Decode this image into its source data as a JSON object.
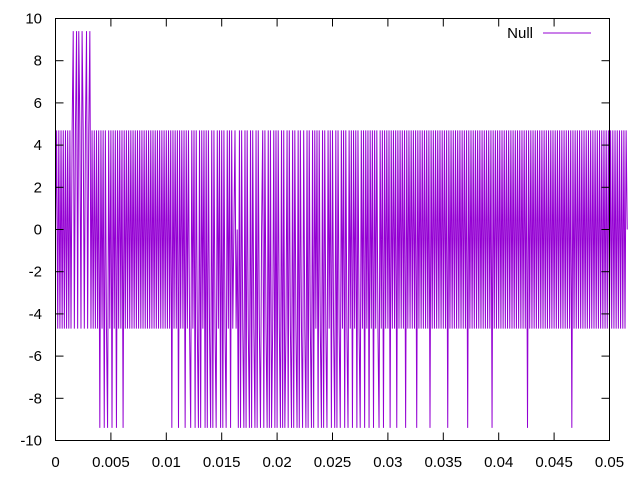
{
  "chart_data": {
    "type": "line",
    "title": "",
    "xlabel": "",
    "ylabel": "",
    "xlim": [
      0,
      0.05
    ],
    "ylim": [
      -10,
      10
    ],
    "x_ticks": [
      0,
      0.005,
      0.01,
      0.015,
      0.02,
      0.025,
      0.03,
      0.035,
      0.04,
      0.045,
      0.05
    ],
    "x_tick_labels": [
      "0",
      "0.005",
      "0.01",
      "0.015",
      "0.02",
      "0.025",
      "0.03",
      "0.035",
      "0.04",
      "0.045",
      "0.05"
    ],
    "y_ticks": [
      -10,
      -8,
      -6,
      -4,
      -2,
      0,
      2,
      4,
      6,
      8,
      10
    ],
    "y_tick_labels": [
      "-10",
      "-8",
      "-6",
      "-4",
      "-2",
      "0",
      "2",
      "4",
      "6",
      "8",
      "10"
    ],
    "grid": false,
    "legend_position": "top-right",
    "series": [
      {
        "name": "Null",
        "color": "#9400d3",
        "sample_interval": 0.0001,
        "levels": [
          4.7,
          -4.7,
          9.4,
          -9.4,
          0
        ],
        "values": [
          0,
          4.7,
          -4.7,
          4.7,
          -4.7,
          4.7,
          -4.7,
          4.7,
          -4.7,
          4.7,
          -4.7,
          4.7,
          -4.7,
          4.7,
          -4.7,
          4.7,
          9.4,
          -4.7,
          4.7,
          9.4,
          -4.7,
          9.4,
          4.7,
          -4.7,
          9.4,
          4.7,
          -4.7,
          4.7,
          9.4,
          -4.7,
          4.7,
          9.4,
          -4.7,
          4.7,
          -4.7,
          4.7,
          -4.7,
          4.7,
          -4.7,
          4.7,
          -9.4,
          4.7,
          -4.7,
          4.7,
          -9.4,
          4.7,
          -4.7,
          -9.4,
          4.7,
          -4.7,
          4.7,
          -9.4,
          4.7,
          -4.7,
          4.7,
          -9.4,
          4.7,
          -4.7,
          4.7,
          -4.7,
          4.7,
          -9.4,
          4.7,
          -4.7,
          4.7,
          -4.7,
          4.7,
          -4.7,
          4.7,
          -4.7,
          4.7,
          -4.7,
          4.7,
          -4.7,
          4.7,
          -4.7,
          4.7,
          -4.7,
          4.7,
          -4.7,
          4.7,
          -4.7,
          4.7,
          -4.7,
          4.7,
          -4.7,
          4.7,
          -4.7,
          4.7,
          -4.7,
          4.7,
          -4.7,
          4.7,
          -4.7,
          4.7,
          -4.7,
          4.7,
          -4.7,
          4.7,
          -4.7,
          4.7,
          -4.7,
          4.7,
          -4.7,
          4.7,
          -9.4,
          4.7,
          -4.7,
          4.7,
          -4.7,
          4.7,
          -9.4,
          4.7,
          -4.7,
          4.7,
          -4.7,
          4.7,
          -9.4,
          4.7,
          -4.7,
          4.7,
          -4.7,
          -9.4,
          4.7,
          -4.7,
          4.7,
          -9.4,
          4.7,
          -4.7,
          -9.4,
          4.7,
          -9.4,
          4.7,
          -4.7,
          4.7,
          -9.4,
          4.7,
          -9.4,
          4.7,
          -4.7,
          -9.4,
          4.7,
          -9.4,
          4.7,
          -4.7,
          -9.4,
          4.7,
          -4.7,
          4.7,
          -9.4,
          4.7,
          -9.4,
          4.7,
          -4.7,
          -9.4,
          4.7,
          -4.7,
          4.7,
          -9.4,
          4.7,
          -4.7,
          0,
          4.7,
          -4.7,
          0,
          -9.4,
          4.7,
          -9.4,
          4.7,
          -4.7,
          -9.4,
          4.7,
          -9.4,
          4.7,
          -4.7,
          -9.4,
          4.7,
          -9.4,
          4.7,
          -4.7,
          -9.4,
          4.7,
          -9.4,
          4.7,
          -4.7,
          -9.4,
          0,
          4.7,
          -9.4,
          4.7,
          -4.7,
          -9.4,
          4.7,
          -9.4,
          4.7,
          -9.4,
          -4.7,
          4.7,
          -9.4,
          4.7,
          -9.4,
          4.7,
          -4.7,
          -9.4,
          4.7,
          -9.4,
          4.7,
          -9.4,
          -4.7,
          4.7,
          -9.4,
          4.7,
          -4.7,
          -9.4,
          4.7,
          -9.4,
          4.7,
          -4.7,
          -9.4,
          4.7,
          -9.4,
          4.7,
          -4.7,
          -9.4,
          4.7,
          -4.7,
          -9.4,
          4.7,
          -9.4,
          4.7,
          -4.7,
          -9.4,
          4.7,
          -9.4,
          4.7,
          -4.7,
          4.7,
          -9.4,
          4.7,
          -4.7,
          -9.4,
          4.7,
          -9.4,
          4.7,
          -4.7,
          -9.4,
          4.7,
          -4.7,
          4.7,
          -9.4,
          4.7,
          -4.7,
          -9.4,
          4.7,
          -9.4,
          4.7,
          -4.7,
          -9.4,
          4.7,
          -4.7,
          4.7,
          -9.4,
          4.7,
          -4.7,
          -9.4,
          4.7,
          -4.7,
          4.7,
          -9.4,
          4.7,
          -4.7,
          4.7,
          -9.4,
          4.7,
          -4.7,
          -9.4,
          4.7,
          -4.7,
          4.7,
          -9.4,
          4.7,
          -4.7,
          4.7,
          -9.4,
          4.7,
          -4.7,
          4.7,
          -9.4,
          4.7,
          -4.7,
          4.7,
          -4.7,
          -9.4,
          4.7,
          -4.7,
          4.7,
          -9.4,
          4.7,
          -4.7,
          4.7,
          -4.7,
          4.7,
          -9.4,
          4.7,
          -4.7,
          4.7,
          -4.7,
          4.7,
          -9.4,
          4.7,
          -4.7,
          4.7,
          -4.7,
          4.7,
          -4.7,
          4.7,
          -9.4,
          4.7,
          -4.7,
          4.7,
          -4.7,
          4.7,
          -4.7,
          4.7,
          -4.7,
          4.7,
          -9.4,
          4.7,
          -4.7,
          4.7,
          -4.7,
          4.7,
          -4.7,
          4.7,
          -4.7,
          4.7,
          -4.7,
          4.7,
          -9.4,
          4.7,
          -4.7,
          4.7,
          -4.7,
          4.7,
          -4.7,
          4.7,
          -4.7,
          4.7,
          -4.7,
          4.7,
          -4.7,
          4.7,
          -4.7,
          4.7,
          -9.4,
          4.7,
          -4.7,
          4.7,
          -4.7,
          4.7,
          -4.7,
          4.7,
          -4.7,
          4.7,
          -4.7,
          4.7,
          -4.7,
          4.7,
          -4.7,
          4.7,
          -4.7,
          4.7,
          -9.4,
          4.7,
          -4.7,
          4.7,
          -4.7,
          4.7,
          -4.7,
          4.7,
          -4.7,
          4.7,
          -4.7,
          4.7,
          -4.7,
          4.7,
          -4.7,
          4.7,
          -4.7,
          4.7,
          -4.7,
          4.7,
          -4.7,
          4.7,
          -9.4,
          4.7,
          -4.7,
          4.7,
          -4.7,
          4.7,
          -4.7,
          4.7,
          -4.7,
          4.7,
          -4.7,
          4.7,
          -4.7,
          4.7,
          -4.7,
          4.7,
          -4.7,
          4.7,
          -4.7,
          4.7,
          -4.7,
          4.7,
          -4.7,
          4.7,
          -4.7,
          4.7,
          -4.7,
          4.7,
          -4.7,
          4.7,
          -4.7,
          4.7,
          -9.4,
          4.7,
          -4.7,
          4.7,
          -4.7,
          4.7,
          -4.7,
          4.7,
          -4.7,
          4.7,
          -4.7,
          4.7,
          -4.7,
          4.7,
          -4.7,
          4.7,
          -4.7,
          4.7,
          -4.7,
          4.7,
          -4.7,
          4.7,
          -4.7,
          4.7,
          -4.7,
          4.7,
          -4.7,
          4.7,
          -4.7,
          4.7,
          -4.7,
          4.7,
          -4.7,
          4.7,
          -4.7,
          4.7,
          -4.7,
          4.7,
          -4.7,
          4.7,
          -9.4,
          4.7,
          -4.7,
          4.7,
          -4.7,
          4.7,
          -4.7,
          4.7,
          -4.7,
          4.7,
          -4.7,
          4.7,
          -4.7,
          4.7,
          -4.7,
          4.7,
          -4.7,
          4.7,
          -4.7,
          4.7,
          -4.7,
          4.7,
          -4.7,
          4.7,
          -4.7,
          4.7,
          -4.7,
          4.7,
          -4.7,
          4.7,
          -4.7,
          4.7,
          -4.7,
          4.7,
          -4.7,
          4.7,
          -4.7,
          4.7,
          -4.7,
          4.7,
          -4.7,
          4.7,
          -4.7,
          4.7,
          -4.7,
          4.7,
          -4.7,
          4.7,
          -4.7,
          4.7,
          0
        ]
      }
    ]
  }
}
